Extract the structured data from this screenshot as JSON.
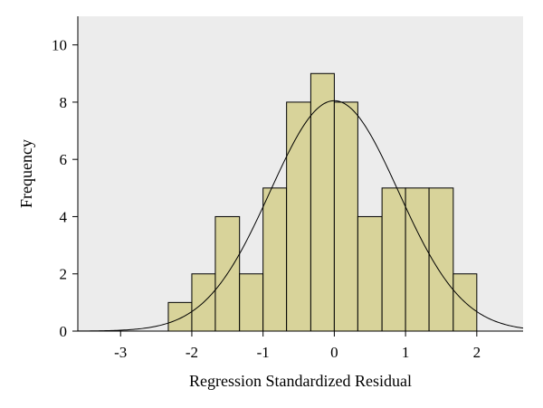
{
  "chart_data": {
    "type": "bar",
    "title": "",
    "xlabel": "Regression Standardized Residual",
    "ylabel": "Frequency",
    "xlim": [
      -3.6,
      2.65
    ],
    "ylim": [
      0,
      11
    ],
    "x_ticks": [
      -3,
      -2,
      -1,
      0,
      1,
      2
    ],
    "x_tick_labels": [
      "-3",
      "-2",
      "-1",
      "0",
      "1",
      "2"
    ],
    "y_ticks": [
      0,
      2,
      4,
      6,
      8,
      10
    ],
    "y_tick_labels": [
      "0",
      "2",
      "4",
      "6",
      "8",
      "10"
    ],
    "bins": [
      {
        "x0": -2.33,
        "x1": -2.0,
        "count": 1
      },
      {
        "x0": -2.0,
        "x1": -1.67,
        "count": 2
      },
      {
        "x0": -1.67,
        "x1": -1.33,
        "count": 4
      },
      {
        "x0": -1.33,
        "x1": -1.0,
        "count": 2
      },
      {
        "x0": -1.0,
        "x1": -0.67,
        "count": 5
      },
      {
        "x0": -0.67,
        "x1": -0.33,
        "count": 8
      },
      {
        "x0": -0.33,
        "x1": 0.0,
        "count": 9
      },
      {
        "x0": 0.0,
        "x1": 0.33,
        "count": 8
      },
      {
        "x0": 0.33,
        "x1": 0.67,
        "count": 4
      },
      {
        "x0": 0.67,
        "x1": 1.0,
        "count": 5
      },
      {
        "x0": 1.0,
        "x1": 1.33,
        "count": 5
      },
      {
        "x0": 1.33,
        "x1": 1.67,
        "count": 5
      },
      {
        "x0": 1.67,
        "x1": 2.0,
        "count": 2
      }
    ],
    "normal_curve": {
      "mean": 0,
      "sd": 0.9,
      "peak": 8.05
    },
    "grid": false,
    "legend": "none",
    "colors": {
      "plot_background": "#ececec",
      "bar_fill": "#d8d39a",
      "bar_stroke": "#000000",
      "curve": "#000000",
      "axis": "#000000"
    }
  }
}
